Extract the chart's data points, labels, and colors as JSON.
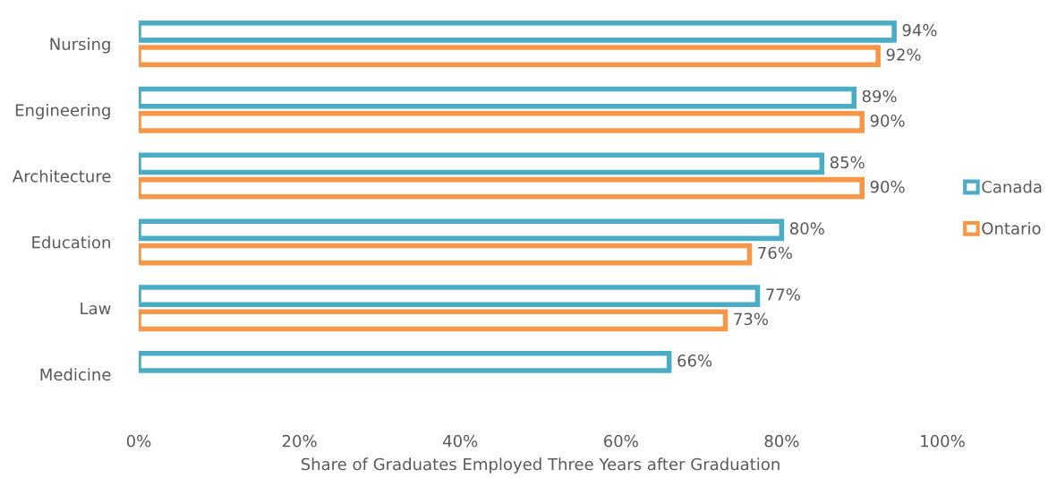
{
  "chart_data": {
    "type": "bar",
    "orientation": "horizontal",
    "xlabel": "Share of Graduates Employed Three Years after Graduation",
    "categories": [
      "Nursing",
      "Engineering",
      "Architecture",
      "Education",
      "Law",
      "Medicine"
    ],
    "series": [
      {
        "name": "Canada",
        "color": "#4bacc6",
        "values": [
          94,
          89,
          85,
          80,
          77,
          66
        ],
        "value_labels": [
          "94%",
          "89%",
          "85%",
          "80%",
          "77%",
          "66%"
        ]
      },
      {
        "name": "Ontario",
        "color": "#f79646",
        "values": [
          92,
          90,
          90,
          76,
          73,
          null
        ],
        "value_labels": [
          "92%",
          "90%",
          "90%",
          "76%",
          "73%",
          null
        ]
      }
    ],
    "xlim": [
      0,
      100
    ],
    "xticks": [
      {
        "value": 0,
        "label": "0%"
      },
      {
        "value": 20,
        "label": "20%"
      },
      {
        "value": 40,
        "label": "40%"
      },
      {
        "value": 60,
        "label": "60%"
      },
      {
        "value": 80,
        "label": "80%"
      },
      {
        "value": 100,
        "label": "100%"
      }
    ],
    "grid": false,
    "legend": "right"
  }
}
